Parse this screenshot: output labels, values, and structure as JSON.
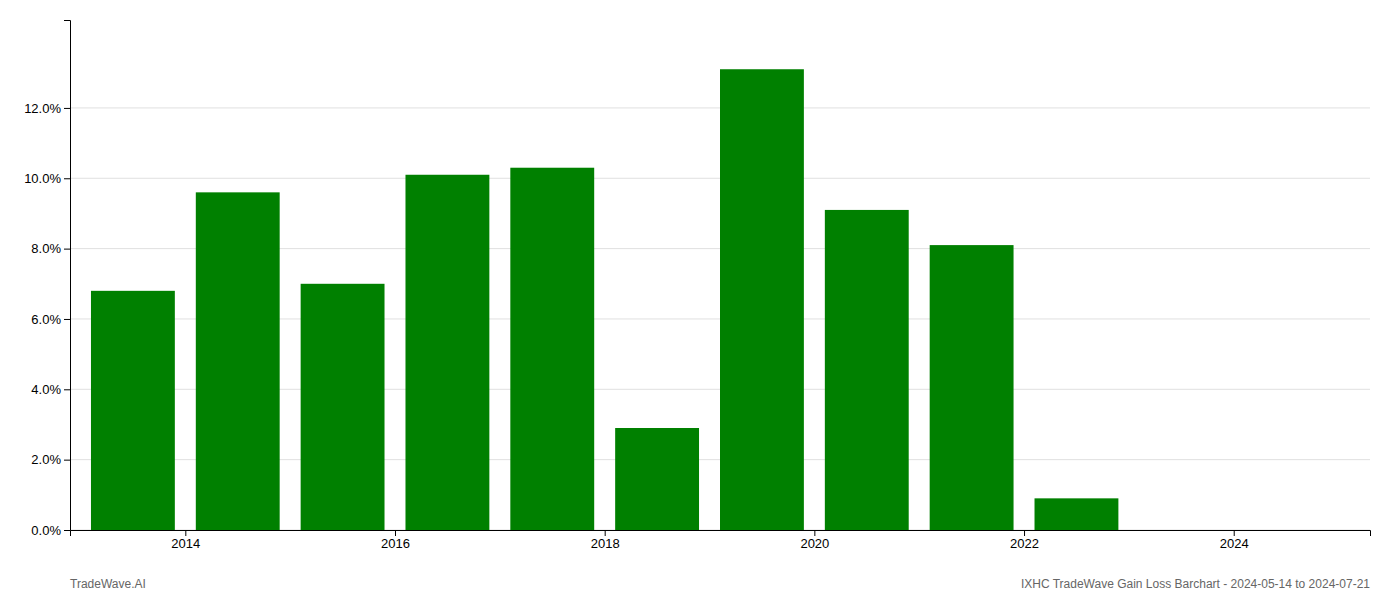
{
  "chart_data": {
    "type": "bar",
    "x": [
      2013,
      2014,
      2015,
      2016,
      2017,
      2018,
      2019,
      2020,
      2021,
      2022,
      2023
    ],
    "values": [
      0.068,
      0.096,
      0.07,
      0.101,
      0.103,
      0.029,
      0.131,
      0.091,
      0.081,
      0.009,
      0.0
    ],
    "color": "#008000",
    "xlim": [
      2012.4,
      2024.8
    ],
    "xticks": [
      {
        "value": 2013.5,
        "label": "2014"
      },
      {
        "value": 2015.5,
        "label": "2016"
      },
      {
        "value": 2017.5,
        "label": "2018"
      },
      {
        "value": 2019.5,
        "label": "2020"
      },
      {
        "value": 2021.5,
        "label": "2022"
      },
      {
        "value": 2023.5,
        "label": "2024"
      }
    ],
    "ylim": [
      0.0,
      0.145
    ],
    "yticks": [
      {
        "value": 0.0,
        "label": "0.0%"
      },
      {
        "value": 0.02,
        "label": "2.0%"
      },
      {
        "value": 0.04,
        "label": "4.0%"
      },
      {
        "value": 0.06,
        "label": "6.0%"
      },
      {
        "value": 0.08,
        "label": "8.0%"
      },
      {
        "value": 0.1,
        "label": "10.0%"
      },
      {
        "value": 0.12,
        "label": "12.0%"
      }
    ],
    "grid": true,
    "annotations": [
      "TradeWave.AI",
      "IXHC TradeWave Gain Loss Barchart - 2024-05-14 to 2024-07-21"
    ]
  }
}
